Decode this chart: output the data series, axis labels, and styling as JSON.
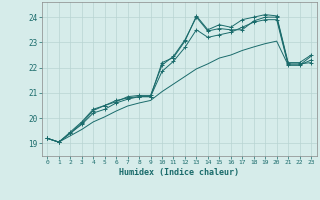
{
  "title": "",
  "xlabel": "Humidex (Indice chaleur)",
  "ylabel": "",
  "bg_color": "#d6ecea",
  "grid_color": "#b8d4d2",
  "line_color": "#1a6b6b",
  "xlim": [
    -0.5,
    23.5
  ],
  "ylim": [
    18.5,
    24.6
  ],
  "xticks": [
    0,
    1,
    2,
    3,
    4,
    5,
    6,
    7,
    8,
    9,
    10,
    11,
    12,
    13,
    14,
    15,
    16,
    17,
    18,
    19,
    20,
    21,
    22,
    23
  ],
  "yticks": [
    19,
    20,
    21,
    22,
    23,
    24
  ],
  "series": [
    [
      19.2,
      19.05,
      19.4,
      19.8,
      20.3,
      20.5,
      20.7,
      20.8,
      20.85,
      20.85,
      22.2,
      22.4,
      23.05,
      24.05,
      23.5,
      23.7,
      23.6,
      23.9,
      24.0,
      24.1,
      24.05,
      22.2,
      22.2,
      22.5
    ],
    [
      19.2,
      19.05,
      19.45,
      19.85,
      20.35,
      20.5,
      20.65,
      20.85,
      20.9,
      20.9,
      22.1,
      22.45,
      23.1,
      24.0,
      23.45,
      23.55,
      23.5,
      23.5,
      23.85,
      24.0,
      24.0,
      22.15,
      22.15,
      22.2
    ],
    [
      19.2,
      19.05,
      19.4,
      19.75,
      20.2,
      20.35,
      20.6,
      20.75,
      20.85,
      20.85,
      21.85,
      22.25,
      22.8,
      23.5,
      23.2,
      23.3,
      23.4,
      23.6,
      23.8,
      23.9,
      23.9,
      22.1,
      22.1,
      22.3
    ],
    [
      19.2,
      19.05,
      19.3,
      19.55,
      19.85,
      20.05,
      20.28,
      20.48,
      20.6,
      20.7,
      21.05,
      21.35,
      21.65,
      21.95,
      22.15,
      22.38,
      22.5,
      22.68,
      22.82,
      22.95,
      23.05,
      22.1,
      22.1,
      22.45
    ]
  ]
}
